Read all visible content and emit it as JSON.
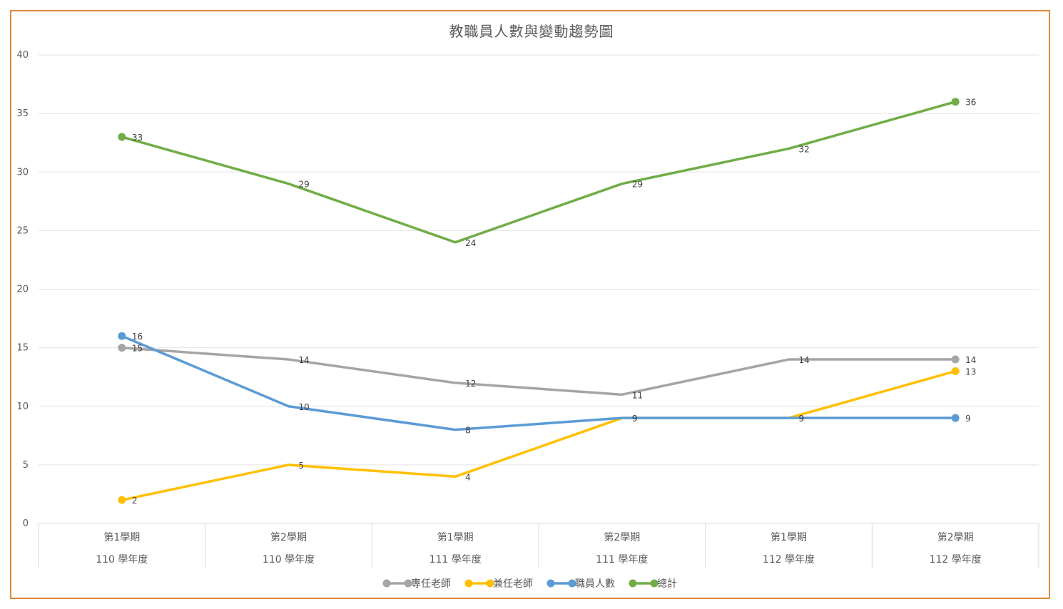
{
  "chart_data": {
    "type": "line",
    "title": "教職員人數與變動趨勢圖",
    "categories": [
      {
        "sub": "第1學期",
        "group": "110 學年度"
      },
      {
        "sub": "第2學期",
        "group": "110 學年度"
      },
      {
        "sub": "第1學期",
        "group": "111 學年度"
      },
      {
        "sub": "第2學期",
        "group": "111 學年度"
      },
      {
        "sub": "第1學期",
        "group": "112 學年度"
      },
      {
        "sub": "第2學期",
        "group": "112 學年度"
      }
    ],
    "series": [
      {
        "name": "專任老師",
        "color": "#a5a5a5",
        "values": [
          15,
          14,
          12,
          11,
          14,
          14
        ]
      },
      {
        "name": "兼任老師",
        "color": "#ffc000",
        "values": [
          2,
          5,
          4,
          9,
          9,
          13
        ]
      },
      {
        "name": "職員人數",
        "color": "#5b9bd5",
        "values": [
          16,
          10,
          8,
          9,
          9,
          9
        ]
      },
      {
        "name": "總計",
        "color": "#70ad47",
        "values": [
          33,
          29,
          24,
          29,
          32,
          36
        ]
      }
    ],
    "ylim": [
      0,
      40
    ],
    "yticks": [
      0,
      5,
      10,
      15,
      20,
      25,
      30,
      35,
      40
    ],
    "grid": true,
    "legend": "bottom"
  }
}
